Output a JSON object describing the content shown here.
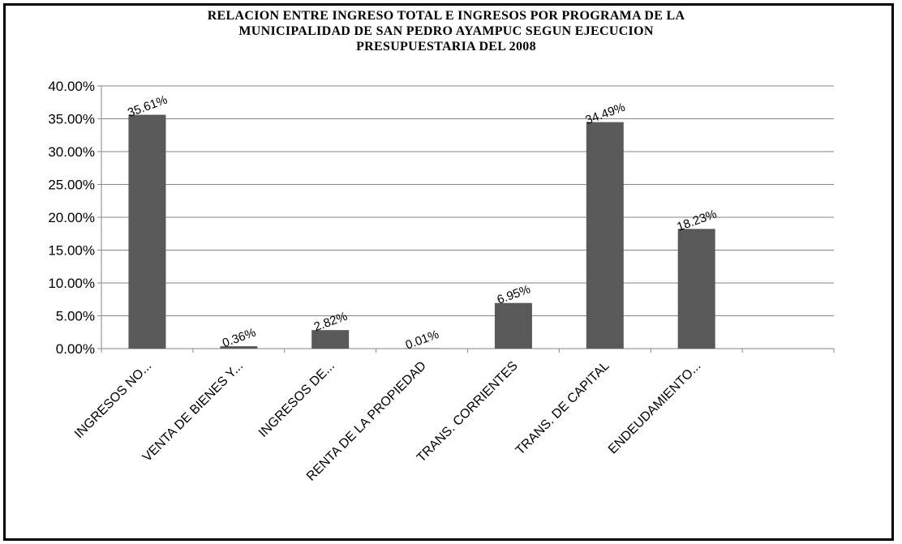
{
  "chart_data": {
    "type": "bar",
    "title_lines": [
      "RELACION ENTRE INGRESO TOTAL E INGRESOS POR PROGRAMA DE LA",
      "MUNICIPALIDAD DE SAN PEDRO AYAMPUC SEGUN EJECUCION",
      "PRESUPUESTARIA DEL 2008"
    ],
    "categories": [
      "INGRESOS NO...",
      "VENTA DE BIENES Y...",
      "INGRESOS DE...",
      "RENTA DE LA PROPIEDAD",
      "TRANS. CORRIENTES",
      "TRANS. DE CAPITAL",
      "ENDEUDAMIENTO..."
    ],
    "values": [
      35.61,
      0.36,
      2.82,
      0.01,
      6.95,
      34.49,
      18.23
    ],
    "data_labels": [
      "35.61%",
      "0.36%",
      "2.82%",
      "0.01%",
      "6.95%",
      "34.49%",
      "18.23%"
    ],
    "y_ticks": [
      "0.00%",
      "5.00%",
      "10.00%",
      "15.00%",
      "20.00%",
      "25.00%",
      "30.00%",
      "35.00%",
      "40.00%"
    ],
    "ylim": [
      0,
      40
    ],
    "extra_empty_slots": 1,
    "grid": true,
    "bar_color": "#595959",
    "xlabel": "",
    "ylabel": ""
  }
}
